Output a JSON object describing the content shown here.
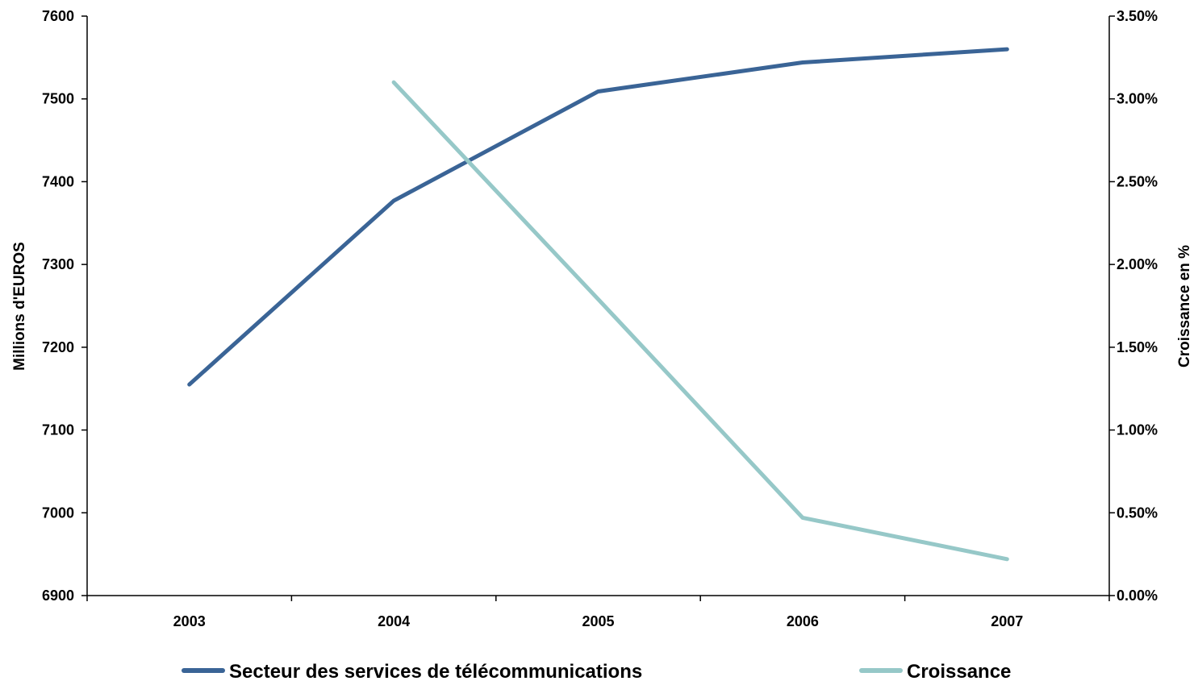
{
  "chart_data": {
    "type": "line",
    "categories": [
      "2003",
      "2004",
      "2005",
      "2006",
      "2007"
    ],
    "y_left": {
      "label": "Millions d'EUROS",
      "range": [
        6900,
        7600
      ],
      "ticks": [
        6900,
        7000,
        7100,
        7200,
        7300,
        7400,
        7500,
        7600
      ],
      "tick_labels": [
        "6900",
        "7000",
        "7100",
        "7200",
        "7300",
        "7400",
        "7500",
        "7600"
      ]
    },
    "y_right": {
      "label": "Croissance en %",
      "range": [
        0,
        3.5
      ],
      "ticks": [
        0,
        0.5,
        1,
        1.5,
        2,
        2.5,
        3,
        3.5
      ],
      "tick_labels": [
        "0.00%",
        "0.50%",
        "1.00%",
        "1.50%",
        "2.00%",
        "2.50%",
        "3.00%",
        "3.50%"
      ]
    },
    "series": [
      {
        "name": "Secteur des services de télécommunications",
        "axis": "left",
        "color": "#3a6496",
        "values": [
          7155,
          7377,
          7509,
          7544,
          7560
        ]
      },
      {
        "name": "Croissance",
        "axis": "right",
        "color": "#96c8c8",
        "values": [
          null,
          3.1,
          1.79,
          0.47,
          0.22
        ]
      }
    ],
    "grid": false,
    "legend_position": "bottom"
  }
}
